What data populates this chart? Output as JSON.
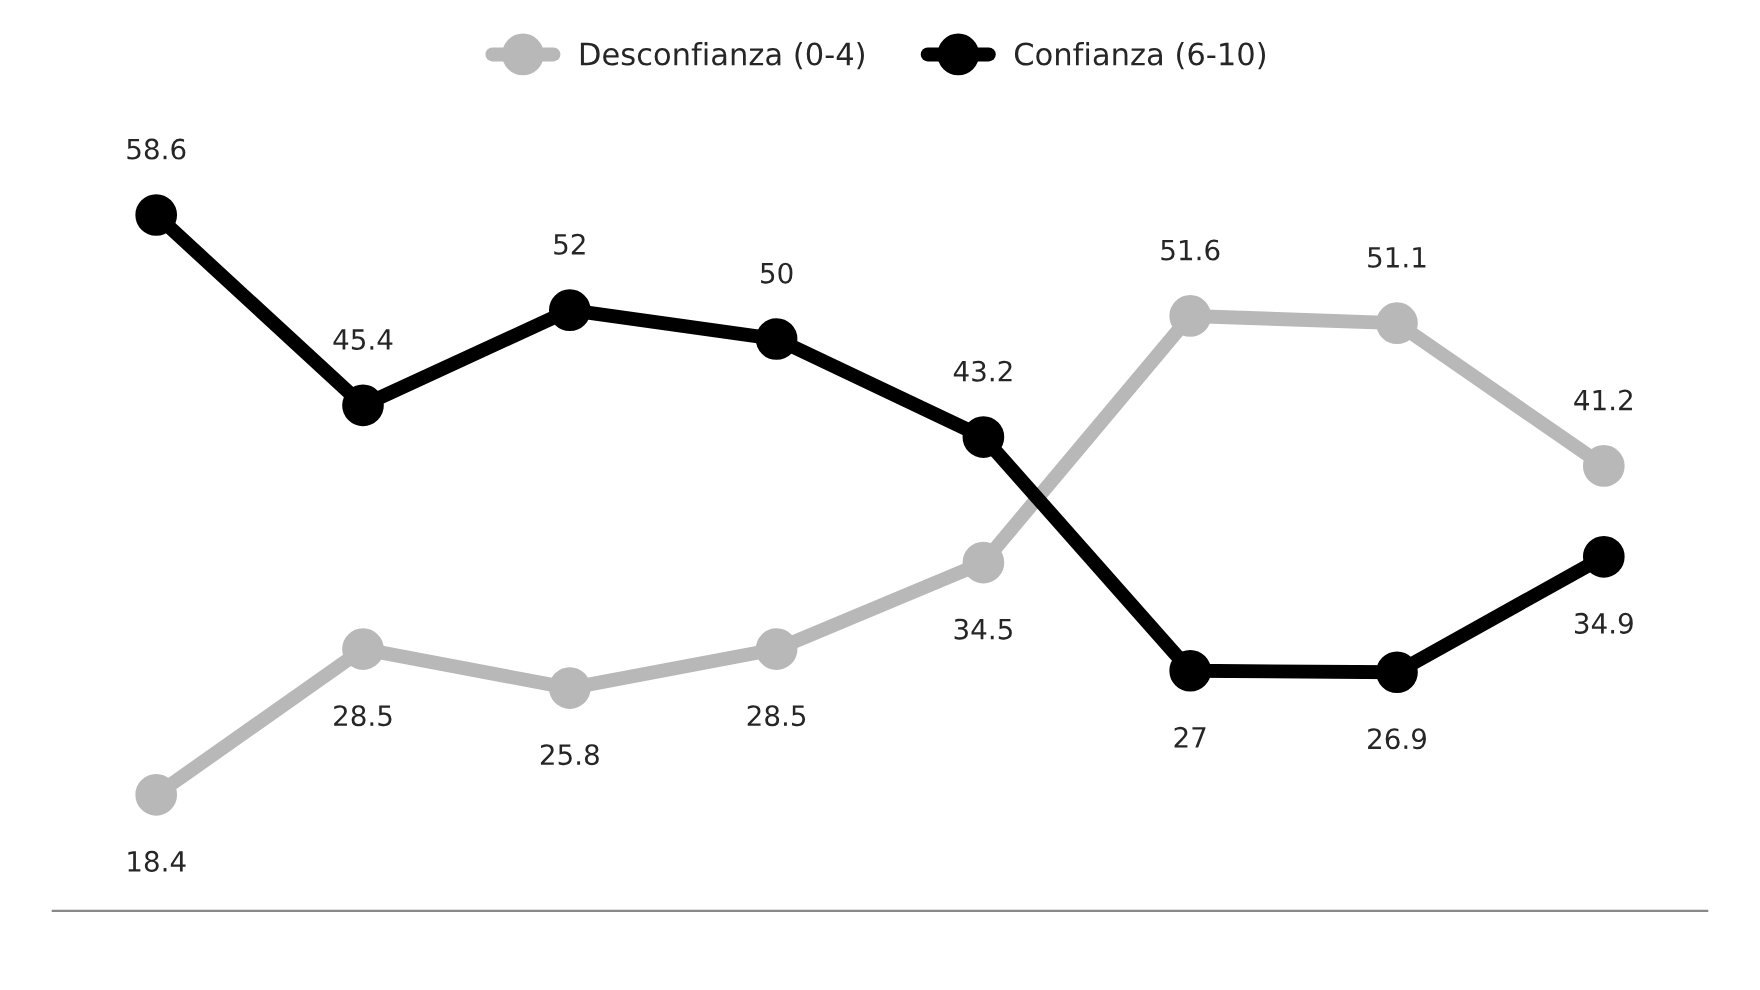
{
  "chart_data": {
    "type": "line",
    "categories": [
      null,
      null,
      null,
      null,
      null,
      null,
      null,
      null
    ],
    "series": [
      {
        "name": "Desconfianza (0-4)",
        "color": "#b8b8b8",
        "values": [
          18.4,
          28.5,
          25.8,
          28.5,
          34.5,
          51.6,
          51.1,
          41.2
        ]
      },
      {
        "name": "Confianza (6-10)",
        "color": "#000000",
        "values": [
          58.6,
          45.4,
          52,
          50,
          43.2,
          27,
          26.9,
          34.9
        ]
      }
    ],
    "data_labels": true,
    "legend": "top",
    "marker": "circle",
    "line_style": "solid",
    "grid": false
  }
}
